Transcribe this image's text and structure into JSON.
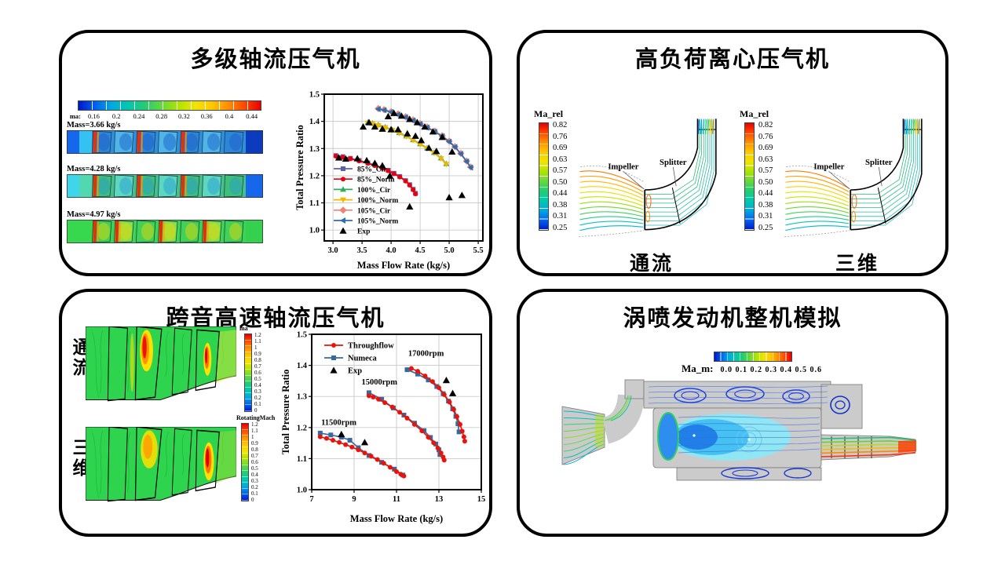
{
  "page": {
    "background": "#ffffff"
  },
  "panels": {
    "tl": {
      "title": "多级轴流压气机",
      "colorbar": {
        "label": "ma:",
        "ticks": [
          "0.16",
          "0.2",
          "0.24",
          "0.28",
          "0.32",
          "0.36",
          "0.4",
          "0.44"
        ]
      },
      "strips": [
        {
          "label": "Mass=3.66 kg/s"
        },
        {
          "label": "Mass=4.28 kg/s"
        },
        {
          "label": "Mass=4.97 kg/s"
        }
      ]
    },
    "tr": {
      "title": "高负荷离心压气机",
      "plots": [
        {
          "colorbar_label": "Ma_rel",
          "ticks": [
            "0.82",
            "0.76",
            "0.69",
            "0.63",
            "0.57",
            "0.50",
            "0.44",
            "0.38",
            "0.31",
            "0.25"
          ],
          "impeller_label": "Impeller",
          "splitter_label": "Splitter",
          "caption": "通流"
        },
        {
          "colorbar_label": "Ma_rel",
          "ticks": [
            "0.82",
            "0.76",
            "0.69",
            "0.63",
            "0.57",
            "0.50",
            "0.44",
            "0.38",
            "0.31",
            "0.25"
          ],
          "impeller_label": "Impeller",
          "splitter_label": "Splitter",
          "caption": "三维"
        }
      ]
    },
    "bl": {
      "title": "跨音高速轴流压气机",
      "rows": [
        {
          "label": "通流",
          "colorbar_label": "ma"
        },
        {
          "label": "三维",
          "colorbar_label": "RotatingMach"
        }
      ],
      "colorbar_ticks": [
        "1.2",
        "1.1",
        "1",
        "0.9",
        "0.8",
        "0.7",
        "0.6",
        "0.5",
        "0.4",
        "0.3",
        "0.2",
        "0.1",
        "0"
      ]
    },
    "br": {
      "title": "涡喷发动机整机模拟",
      "colorbar": {
        "label": "Ma_m:",
        "ticks": "0.0 0.1 0.2 0.3 0.4 0.5 0.6"
      }
    }
  },
  "chart_data": [
    {
      "type": "line",
      "title": "",
      "xlabel": "Mass Flow Rate (kg/s)",
      "ylabel": "Total Pressure Ratio",
      "xlim": [
        2.85,
        5.58
      ],
      "ylim": [
        0.96,
        1.5
      ],
      "xticks": {
        "values": [
          3.0,
          3.5,
          4.0,
          4.5,
          5.0,
          5.5
        ],
        "labels": [
          "3.0",
          "3.5",
          "4.0",
          "4.5",
          "5.0",
          "5.5"
        ]
      },
      "yticks": {
        "values": [
          1.0,
          1.1,
          1.2,
          1.3,
          1.4,
          1.5
        ],
        "labels": [
          "1.0",
          "1.1",
          "1.2",
          "1.3",
          "1.4",
          "1.5"
        ]
      },
      "grid": true,
      "legend_pos": "bottom-left",
      "series": [
        {
          "name": "85%_Cir",
          "color": "#5b63a5",
          "marker": "square",
          "z": 1,
          "points": [
            [
              3.05,
              1.274
            ],
            [
              3.17,
              1.27
            ],
            [
              3.3,
              1.264
            ],
            [
              3.45,
              1.256
            ],
            [
              3.6,
              1.247
            ],
            [
              3.72,
              1.239
            ],
            [
              3.85,
              1.229
            ],
            [
              3.95,
              1.22
            ],
            [
              4.05,
              1.209
            ],
            [
              4.15,
              1.197
            ],
            [
              4.25,
              1.182
            ],
            [
              4.32,
              1.167
            ],
            [
              4.38,
              1.15
            ],
            [
              4.42,
              1.135
            ]
          ]
        },
        {
          "name": "85%_Norm",
          "color": "#e8000f",
          "marker": "circle",
          "z": 2,
          "points": [
            [
              3.05,
              1.272
            ],
            [
              3.17,
              1.268
            ],
            [
              3.3,
              1.262
            ],
            [
              3.45,
              1.254
            ],
            [
              3.6,
              1.245
            ],
            [
              3.72,
              1.237
            ],
            [
              3.85,
              1.227
            ],
            [
              3.95,
              1.218
            ],
            [
              4.05,
              1.207
            ],
            [
              4.15,
              1.195
            ],
            [
              4.25,
              1.18
            ],
            [
              4.32,
              1.165
            ],
            [
              4.38,
              1.148
            ],
            [
              4.42,
              1.133
            ]
          ]
        },
        {
          "name": "100%_Cir",
          "color": "#2fae60",
          "marker": "triangle-up",
          "z": 1,
          "points": [
            [
              3.6,
              1.396
            ],
            [
              3.68,
              1.393
            ],
            [
              3.78,
              1.387
            ],
            [
              3.9,
              1.379
            ],
            [
              4.02,
              1.369
            ],
            [
              4.14,
              1.358
            ],
            [
              4.26,
              1.346
            ],
            [
              4.38,
              1.332
            ],
            [
              4.5,
              1.317
            ],
            [
              4.62,
              1.302
            ],
            [
              4.74,
              1.285
            ],
            [
              4.86,
              1.265
            ],
            [
              4.95,
              1.244
            ]
          ]
        },
        {
          "name": "100%_Norm",
          "color": "#f2b700",
          "marker": "triangle-down",
          "z": 2,
          "points": [
            [
              3.6,
              1.394
            ],
            [
              3.68,
              1.391
            ],
            [
              3.78,
              1.385
            ],
            [
              3.9,
              1.377
            ],
            [
              4.02,
              1.367
            ],
            [
              4.14,
              1.356
            ],
            [
              4.26,
              1.344
            ],
            [
              4.38,
              1.33
            ],
            [
              4.5,
              1.315
            ],
            [
              4.62,
              1.3
            ],
            [
              4.74,
              1.283
            ],
            [
              4.86,
              1.263
            ],
            [
              4.95,
              1.242
            ]
          ]
        },
        {
          "name": "105%_Cir",
          "color": "#ef8272",
          "marker": "diamond",
          "z": 1,
          "msize": 3.6,
          "points": [
            [
              3.78,
              1.447
            ],
            [
              3.88,
              1.443
            ],
            [
              4.0,
              1.436
            ],
            [
              4.12,
              1.427
            ],
            [
              4.25,
              1.417
            ],
            [
              4.38,
              1.405
            ],
            [
              4.5,
              1.392
            ],
            [
              4.62,
              1.379
            ],
            [
              4.75,
              1.364
            ],
            [
              4.88,
              1.347
            ],
            [
              5.0,
              1.327
            ],
            [
              5.1,
              1.307
            ],
            [
              5.2,
              1.282
            ],
            [
              5.3,
              1.254
            ],
            [
              5.37,
              1.232
            ]
          ]
        },
        {
          "name": "105%_Norm",
          "color": "#2f6cab",
          "marker": "triangle-left",
          "z": 2,
          "points": [
            [
              3.78,
              1.445
            ],
            [
              3.88,
              1.441
            ],
            [
              4.0,
              1.434
            ],
            [
              4.12,
              1.425
            ],
            [
              4.25,
              1.415
            ],
            [
              4.38,
              1.403
            ],
            [
              4.5,
              1.39
            ],
            [
              4.62,
              1.377
            ],
            [
              4.75,
              1.362
            ],
            [
              4.88,
              1.345
            ],
            [
              5.0,
              1.325
            ],
            [
              5.1,
              1.305
            ],
            [
              5.2,
              1.28
            ],
            [
              5.3,
              1.252
            ],
            [
              5.37,
              1.23
            ]
          ]
        },
        {
          "name": "Exp",
          "color": "#000000",
          "marker": "triangle-up",
          "line": false,
          "z": 3,
          "msize": 3.6,
          "points": [
            [
              3.1,
              1.266
            ],
            [
              3.22,
              1.262
            ],
            [
              3.42,
              1.263
            ],
            [
              3.58,
              1.256
            ],
            [
              3.72,
              1.246
            ],
            [
              3.85,
              1.237
            ],
            [
              3.98,
              1.2
            ],
            [
              4.32,
              1.086
            ],
            [
              3.52,
              1.38
            ],
            [
              3.62,
              1.396
            ],
            [
              3.72,
              1.38
            ],
            [
              3.85,
              1.372
            ],
            [
              4.0,
              1.37
            ],
            [
              4.12,
              1.37
            ],
            [
              4.28,
              1.355
            ],
            [
              4.42,
              1.346
            ],
            [
              4.52,
              1.33
            ],
            [
              4.65,
              1.302
            ],
            [
              4.78,
              1.29
            ],
            [
              3.95,
              1.418
            ],
            [
              4.05,
              1.43
            ],
            [
              4.18,
              1.42
            ],
            [
              4.32,
              1.408
            ],
            [
              4.45,
              1.396
            ],
            [
              4.58,
              1.38
            ],
            [
              4.72,
              1.362
            ],
            [
              4.88,
              1.342
            ],
            [
              5.05,
              1.288
            ],
            [
              5.0,
              1.12
            ],
            [
              5.22,
              1.128
            ]
          ]
        }
      ]
    },
    {
      "type": "line",
      "title": "",
      "xlabel": "Mass Flow Rate (kg/s)",
      "ylabel": "Total Pressure Ratio",
      "xlim": [
        7,
        15
      ],
      "ylim": [
        1.0,
        1.5
      ],
      "xticks": {
        "values": [
          7,
          9,
          11,
          13,
          15
        ],
        "labels": [
          "7",
          "9",
          "11",
          "13",
          "15"
        ]
      },
      "yticks": {
        "values": [
          1.0,
          1.1,
          1.2,
          1.3,
          1.4,
          1.5
        ],
        "labels": [
          "1.0",
          "1.1",
          "1.2",
          "1.3",
          "1.4",
          "1.5"
        ]
      },
      "grid": true,
      "legend_pos": "top-left",
      "annotations": [
        {
          "x": 7.45,
          "y": 1.208,
          "text": "11500rpm"
        },
        {
          "x": 9.35,
          "y": 1.338,
          "text": "15000rpm"
        },
        {
          "x": 11.55,
          "y": 1.43,
          "text": "17000rpm"
        }
      ],
      "series": [
        {
          "name": "Throughflow",
          "color": "#e8140c",
          "marker": "circle",
          "z": 2,
          "segments": [
            [
              [
                7.4,
                1.17
              ],
              [
                7.7,
                1.165
              ],
              [
                8.0,
                1.159
              ],
              [
                8.3,
                1.152
              ],
              [
                8.6,
                1.145
              ],
              [
                8.9,
                1.137
              ],
              [
                9.2,
                1.128
              ],
              [
                9.5,
                1.118
              ],
              [
                9.8,
                1.108
              ],
              [
                10.1,
                1.097
              ],
              [
                10.4,
                1.085
              ],
              [
                10.7,
                1.072
              ],
              [
                11.0,
                1.058
              ],
              [
                11.2,
                1.05
              ],
              [
                11.35,
                1.044
              ]
            ],
            [
              [
                9.7,
                1.302
              ],
              [
                9.9,
                1.298
              ],
              [
                10.15,
                1.291
              ],
              [
                10.45,
                1.28
              ],
              [
                10.8,
                1.266
              ],
              [
                11.15,
                1.249
              ],
              [
                11.5,
                1.23
              ],
              [
                11.85,
                1.21
              ],
              [
                12.2,
                1.189
              ],
              [
                12.5,
                1.169
              ],
              [
                12.75,
                1.151
              ],
              [
                12.95,
                1.134
              ],
              [
                13.1,
                1.118
              ],
              [
                13.2,
                1.105
              ],
              [
                13.25,
                1.095
              ]
            ],
            [
              [
                11.7,
                1.39
              ],
              [
                12.0,
                1.381
              ],
              [
                12.35,
                1.366
              ],
              [
                12.7,
                1.348
              ],
              [
                13.0,
                1.328
              ],
              [
                13.25,
                1.306
              ],
              [
                13.5,
                1.282
              ],
              [
                13.7,
                1.258
              ],
              [
                13.85,
                1.235
              ],
              [
                14.0,
                1.21
              ],
              [
                14.1,
                1.188
              ],
              [
                14.18,
                1.17
              ],
              [
                14.22,
                1.156
              ]
            ]
          ]
        },
        {
          "name": "Numeca",
          "color": "#36699e",
          "marker": "square",
          "z": 1,
          "segments": [
            [
              [
                7.4,
                1.182
              ],
              [
                7.9,
                1.176
              ],
              [
                8.4,
                1.169
              ],
              [
                8.8,
                1.159
              ],
              [
                9.2,
                1.135
              ],
              [
                9.7,
                1.11
              ],
              [
                10.3,
                1.088
              ],
              [
                10.9,
                1.066
              ],
              [
                11.3,
                1.047
              ]
            ],
            [
              [
                9.7,
                1.312
              ],
              [
                10.3,
                1.291
              ],
              [
                10.85,
                1.263
              ],
              [
                11.35,
                1.24
              ],
              [
                11.85,
                1.214
              ],
              [
                12.3,
                1.19
              ],
              [
                12.6,
                1.168
              ],
              [
                12.85,
                1.147
              ],
              [
                13.0,
                1.128
              ],
              [
                13.05,
                1.113
              ]
            ],
            [
              [
                11.5,
                1.386
              ],
              [
                12.0,
                1.372
              ],
              [
                12.5,
                1.353
              ],
              [
                12.9,
                1.332
              ],
              [
                13.2,
                1.309
              ],
              [
                13.45,
                1.285
              ],
              [
                13.65,
                1.26
              ],
              [
                13.8,
                1.236
              ],
              [
                13.9,
                1.212
              ],
              [
                13.95,
                1.186
              ]
            ]
          ]
        },
        {
          "name": "Exp",
          "color": "#000000",
          "marker": "triangle-up",
          "line": false,
          "z": 3,
          "msize": 3.6,
          "segments": [
            [
              [
                8.4,
                1.178
              ],
              [
                9.5,
                1.152
              ],
              [
                13.35,
                1.352
              ],
              [
                13.65,
                1.31
              ]
            ]
          ]
        }
      ]
    }
  ]
}
